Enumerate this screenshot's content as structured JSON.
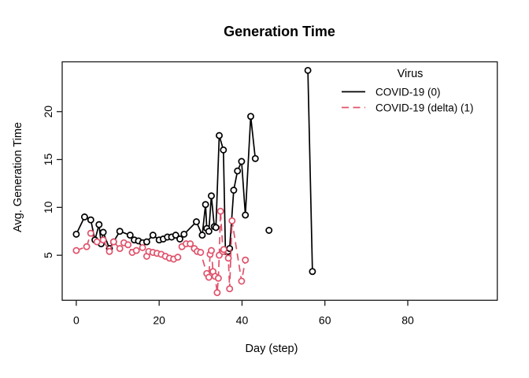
{
  "figure": {
    "background": "#ffffff"
  },
  "chart_data": {
    "type": "line",
    "title": "Generation Time",
    "xlabel": "Day (step)",
    "ylabel": "Avg. Generation Time",
    "xlim": [
      -3.4,
      101.6
    ],
    "ylim": [
      0.3,
      25.2
    ],
    "xticks": [
      0,
      20,
      40,
      60,
      80
    ],
    "yticks": [
      5,
      10,
      15,
      20
    ],
    "grid": false,
    "marker": "open-circle",
    "legend": {
      "title": "Virus",
      "position": "top-right",
      "box": false
    },
    "series": [
      {
        "name": "COVID-19 (0)",
        "color": "#000000",
        "linestyle": "solid",
        "points": [
          [
            0,
            7.2
          ],
          [
            2,
            9.0
          ],
          [
            3.5,
            8.7
          ],
          [
            4.5,
            6.6
          ],
          [
            5.5,
            8.2
          ],
          [
            6,
            6.2
          ],
          [
            6.5,
            7.4
          ],
          [
            8,
            5.7
          ],
          [
            9,
            6.4
          ],
          [
            10.5,
            7.5
          ],
          [
            13,
            7.1
          ],
          [
            14,
            6.6
          ],
          [
            15,
            6.5
          ],
          [
            16,
            6.3
          ],
          [
            17,
            6.4
          ],
          [
            18.5,
            7.1
          ],
          [
            20,
            6.6
          ],
          [
            21,
            6.7
          ],
          [
            22,
            6.9
          ],
          [
            23,
            6.9
          ],
          [
            24,
            7.1
          ],
          [
            25,
            6.7
          ],
          [
            26,
            7.2
          ],
          [
            29,
            8.5
          ],
          [
            30.4,
            7.1
          ],
          [
            31.2,
            10.3
          ],
          [
            31.5,
            7.8
          ],
          [
            32,
            7.5
          ],
          [
            32.6,
            11.2
          ],
          [
            33.3,
            8.0
          ],
          [
            33.7,
            7.9
          ],
          [
            34.5,
            17.5
          ],
          [
            35.5,
            16.0
          ],
          [
            36,
            5.4
          ],
          [
            36.6,
            5.4
          ],
          [
            37,
            5.7
          ],
          [
            38,
            11.8
          ],
          [
            38.9,
            13.8
          ],
          [
            39.9,
            14.8
          ],
          [
            40.8,
            9.2
          ],
          [
            42.1,
            19.5
          ],
          [
            43.2,
            15.1
          ],
          null,
          [
            46.5,
            7.6
          ],
          null,
          [
            55.9,
            24.3
          ],
          [
            57,
            3.3
          ]
        ]
      },
      {
        "name": "COVID-19 (delta) (1)",
        "color": "#DF536B",
        "linestyle": "dashed",
        "points": [
          [
            0,
            5.5
          ],
          [
            2.5,
            5.9
          ],
          [
            3.5,
            7.3
          ],
          [
            5,
            6.4
          ],
          [
            6.5,
            6.6
          ],
          [
            8,
            5.4
          ],
          [
            9,
            6.4
          ],
          [
            10.5,
            5.7
          ],
          [
            11.5,
            6.3
          ],
          [
            12.5,
            6.1
          ],
          [
            13.5,
            5.3
          ],
          [
            14.5,
            5.5
          ],
          [
            16,
            5.8
          ],
          [
            17,
            4.9
          ],
          [
            17.5,
            5.4
          ],
          [
            18.5,
            5.3
          ],
          [
            19.5,
            5.2
          ],
          [
            20.5,
            5.1
          ],
          [
            21.5,
            4.9
          ],
          [
            22.5,
            4.7
          ],
          [
            23.5,
            4.6
          ],
          [
            24.5,
            4.8
          ],
          [
            25.5,
            5.9
          ],
          [
            26.5,
            6.2
          ],
          [
            27.5,
            6.2
          ],
          [
            28.5,
            5.7
          ],
          [
            29.2,
            5.4
          ],
          [
            30,
            5.3
          ],
          [
            31.5,
            3.1
          ],
          [
            32,
            2.7
          ],
          [
            32.3,
            5.1
          ],
          [
            32.6,
            5.5
          ],
          [
            33,
            3.3
          ],
          [
            33.5,
            2.8
          ],
          [
            34,
            1.1
          ],
          [
            34.3,
            2.6
          ],
          [
            34.5,
            5.0
          ],
          [
            34.8,
            9.6
          ],
          [
            35.4,
            5.4
          ],
          [
            35.6,
            5.6
          ],
          [
            36.7,
            4.7
          ],
          [
            37,
            1.5
          ],
          [
            37.6,
            8.6
          ],
          [
            39.9,
            2.3
          ],
          [
            40.8,
            4.5
          ]
        ]
      }
    ]
  }
}
